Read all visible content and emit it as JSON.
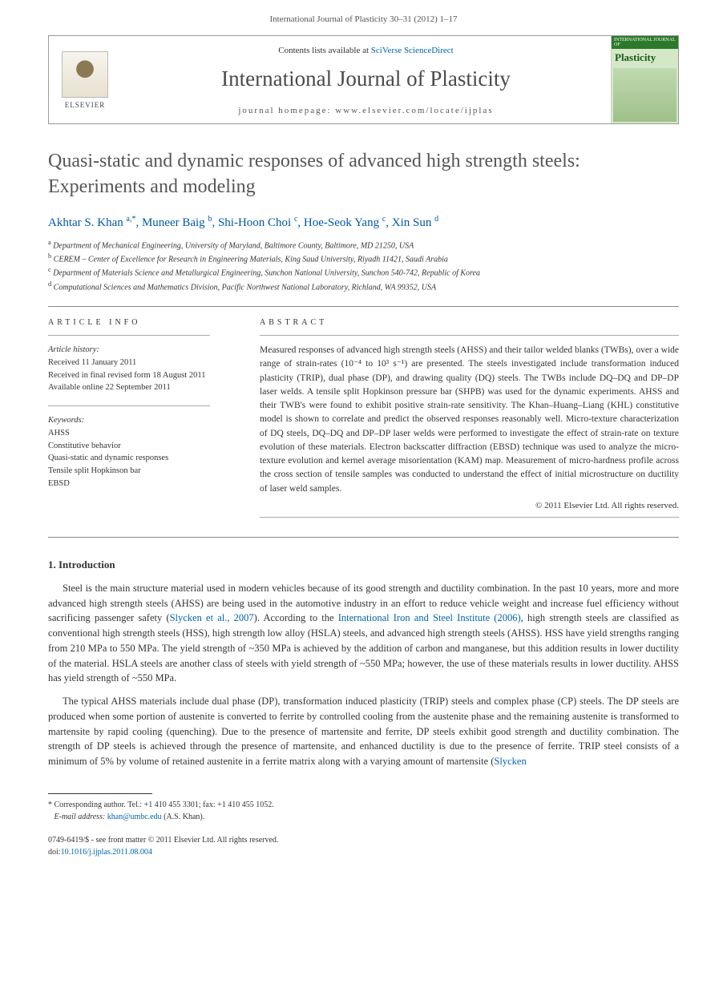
{
  "header": {
    "citation": "International Journal of Plasticity 30–31 (2012) 1–17"
  },
  "journal_box": {
    "elsevier_label": "ELSEVIER",
    "contents_prefix": "Contents lists available at ",
    "contents_link": "SciVerse ScienceDirect",
    "journal_name": "International Journal of Plasticity",
    "homepage_label": "journal homepage: www.elsevier.com/locate/ijplas",
    "cover_head": "INTERNATIONAL JOURNAL OF",
    "cover_title": "Plasticity"
  },
  "article": {
    "title": "Quasi-static and dynamic responses of advanced high strength steels: Experiments and modeling",
    "authors_html": "Akhtar S. Khan <sup>a,*</sup>, Muneer Baig <sup>b</sup>, Shi-Hoon Choi <sup>c</sup>, Hoe-Seok Yang <sup>c</sup>, Xin Sun <sup>d</sup>",
    "affiliations": [
      "a Department of Mechanical Engineering, University of Maryland, Baltimore County, Baltimore, MD 21250, USA",
      "b CEREM – Center of Excellence for Research in Engineering Materials, King Saud University, Riyadh 11421, Saudi Arabia",
      "c Department of Materials Science and Metallurgical Engineering, Sunchon National University, Sunchon 540-742, Republic of Korea",
      "d Computational Sciences and Mathematics Division, Pacific Northwest National Laboratory, Richland, WA 99352, USA"
    ]
  },
  "info": {
    "heading": "ARTICLE INFO",
    "history_label": "Article history:",
    "history": [
      "Received 11 January 2011",
      "Received in final revised form 18 August 2011",
      "Available online 22 September 2011"
    ],
    "keywords_label": "Keywords:",
    "keywords": [
      "AHSS",
      "Constitutive behavior",
      "Quasi-static and dynamic responses",
      "Tensile split Hopkinson bar",
      "EBSD"
    ]
  },
  "abstract": {
    "heading": "ABSTRACT",
    "text": "Measured responses of advanced high strength steels (AHSS) and their tailor welded blanks (TWBs), over a wide range of strain-rates (10⁻⁴ to 10³ s⁻¹) are presented. The steels investigated include transformation induced plasticity (TRIP), dual phase (DP), and drawing quality (DQ) steels. The TWBs include DQ–DQ and DP–DP laser welds. A tensile split Hopkinson pressure bar (SHPB) was used for the dynamic experiments. AHSS and their TWB's were found to exhibit positive strain-rate sensitivity. The Khan–Huang–Liang (KHL) constitutive model is shown to correlate and predict the observed responses reasonably well. Micro-texture characterization of DQ steels, DQ–DQ and DP–DP laser welds were performed to investigate the effect of strain-rate on texture evolution of these materials. Electron backscatter diffraction (EBSD) technique was used to analyze the micro-texture evolution and kernel average misorientation (KAM) map. Measurement of micro-hardness profile across the cross section of tensile samples was conducted to understand the effect of initial microstructure on ductility of laser weld samples.",
    "copyright": "© 2011 Elsevier Ltd. All rights reserved."
  },
  "body": {
    "section1_heading": "1. Introduction",
    "p1_pre": "Steel is the main structure material used in modern vehicles because of its good strength and ductility combination. In the past 10 years, more and more advanced high strength steels (AHSS) are being used in the automotive industry in an effort to reduce vehicle weight and increase fuel efficiency without sacrificing passenger safety (",
    "p1_link1": "Slycken et al., 2007",
    "p1_mid1": "). According to the ",
    "p1_link2": "International Iron and Steel Institute (2006)",
    "p1_post": ", high strength steels are classified as conventional high strength steels (HSS), high strength low alloy (HSLA) steels, and advanced high strength steels (AHSS). HSS have yield strengths ranging from 210 MPa to 550 MPa. The yield strength of ~350 MPa is achieved by the addition of carbon and manganese, but this addition results in lower ductility of the material. HSLA steels are another class of steels with yield strength of ~550 MPa; however, the use of these materials results in lower ductility. AHSS has yield strength of ~550 MPa.",
    "p2_pre": "The typical AHSS materials include dual phase (DP), transformation induced plasticity (TRIP) steels and complex phase (CP) steels. The DP steels are produced when some portion of austenite is converted to ferrite by controlled cooling from the austenite phase and the remaining austenite is transformed to martensite by rapid cooling (quenching). Due to the presence of martensite and ferrite, DP steels exhibit good strength and ductility combination. The strength of DP steels is achieved through the presence of martensite, and enhanced ductility is due to the presence of ferrite. TRIP steel consists of a minimum of 5% by volume of retained austenite in a ferrite matrix along with a varying amount of martensite (",
    "p2_link1": "Slycken"
  },
  "footnotes": {
    "corr": "* Corresponding author. Tel.: +1 410 455 3301; fax: +1 410 455 1052.",
    "email_label": "E-mail address:",
    "email": "khan@umbc.edu",
    "email_suffix": "(A.S. Khan)."
  },
  "bottom": {
    "front_matter": "0749-6419/$ - see front matter © 2011 Elsevier Ltd. All rights reserved.",
    "doi_label": "doi:",
    "doi": "10.1016/j.ijplas.2011.08.004"
  }
}
